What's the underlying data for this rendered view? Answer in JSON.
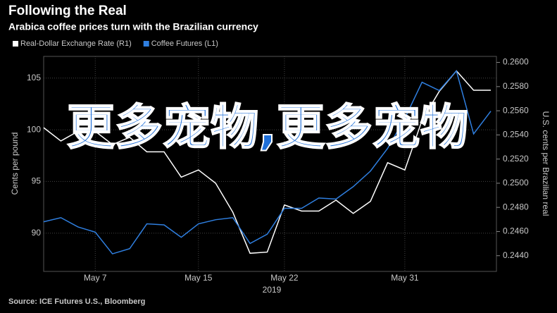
{
  "chart_data": {
    "type": "line",
    "title": "Following the Real",
    "subtitle": "Arabica coffee prices turn with the Brazilian currency",
    "x": [
      "2019-05-02",
      "2019-05-03",
      "2019-05-06",
      "2019-05-07",
      "2019-05-08",
      "2019-05-09",
      "2019-05-10",
      "2019-05-13",
      "2019-05-14",
      "2019-05-15",
      "2019-05-16",
      "2019-05-17",
      "2019-05-20",
      "2019-05-21",
      "2019-05-22",
      "2019-05-23",
      "2019-05-24",
      "2019-05-27",
      "2019-05-28",
      "2019-05-29",
      "2019-05-30",
      "2019-05-31",
      "2019-06-03",
      "2019-06-04",
      "2019-06-05",
      "2019-06-06",
      "2019-06-07"
    ],
    "xticks": [
      {
        "value": "2019-05-07",
        "label": "May 7"
      },
      {
        "value": "2019-05-15",
        "label": "May 15"
      },
      {
        "value": "2019-05-22",
        "label": "May 22"
      },
      {
        "value": "2019-05-31",
        "label": "May 31"
      }
    ],
    "x_label": "2019",
    "y_label": "Cents per pound",
    "y2_label": "U.S. cents per Brazilian real",
    "ylim": [
      86.3,
      107.1
    ],
    "yticks": [
      90,
      95,
      100,
      105
    ],
    "y2lim": [
      0.2427,
      0.2605
    ],
    "y2ticks": [
      {
        "value": 0.244,
        "label": "0.2440"
      },
      {
        "value": 0.246,
        "label": "0.2460"
      },
      {
        "value": 0.248,
        "label": "0.2480"
      },
      {
        "value": 0.25,
        "label": "0.2500"
      },
      {
        "value": 0.252,
        "label": "0.2520"
      },
      {
        "value": 0.254,
        "label": "0.2540"
      },
      {
        "value": 0.256,
        "label": "0.2560"
      },
      {
        "value": 0.258,
        "label": "0.2580"
      },
      {
        "value": 0.26,
        "label": "0.2600"
      }
    ],
    "grid": true,
    "series": [
      {
        "name": "Real-Dollar Exchange Rate (R1)",
        "color": "#ffffff",
        "axis": "y2",
        "values": [
          0.2546,
          0.2535,
          0.2543,
          0.2543,
          0.2532,
          0.2538,
          0.2526,
          0.2526,
          0.2505,
          0.2511,
          0.25,
          0.2476,
          0.2442,
          0.2443,
          0.2482,
          0.2477,
          0.2477,
          0.2486,
          0.2475,
          0.2485,
          0.2517,
          0.2511,
          0.2552,
          0.2576,
          0.2593,
          0.2577,
          0.2577
        ]
      },
      {
        "name": "Coffee Futures (L1)",
        "color": "#2f7fe0",
        "axis": "y",
        "values": [
          91.1,
          91.5,
          90.6,
          90.1,
          88.0,
          88.5,
          90.9,
          90.8,
          89.6,
          90.9,
          91.3,
          91.5,
          89.0,
          89.9,
          92.4,
          92.4,
          93.4,
          93.3,
          94.5,
          96.0,
          98.2,
          101.1,
          104.6,
          103.8,
          105.7,
          99.6,
          101.8
        ]
      }
    ],
    "source": "Source: ICE Futures U.S., Bloomberg",
    "watermark": "更多宠物,更多宠物"
  }
}
